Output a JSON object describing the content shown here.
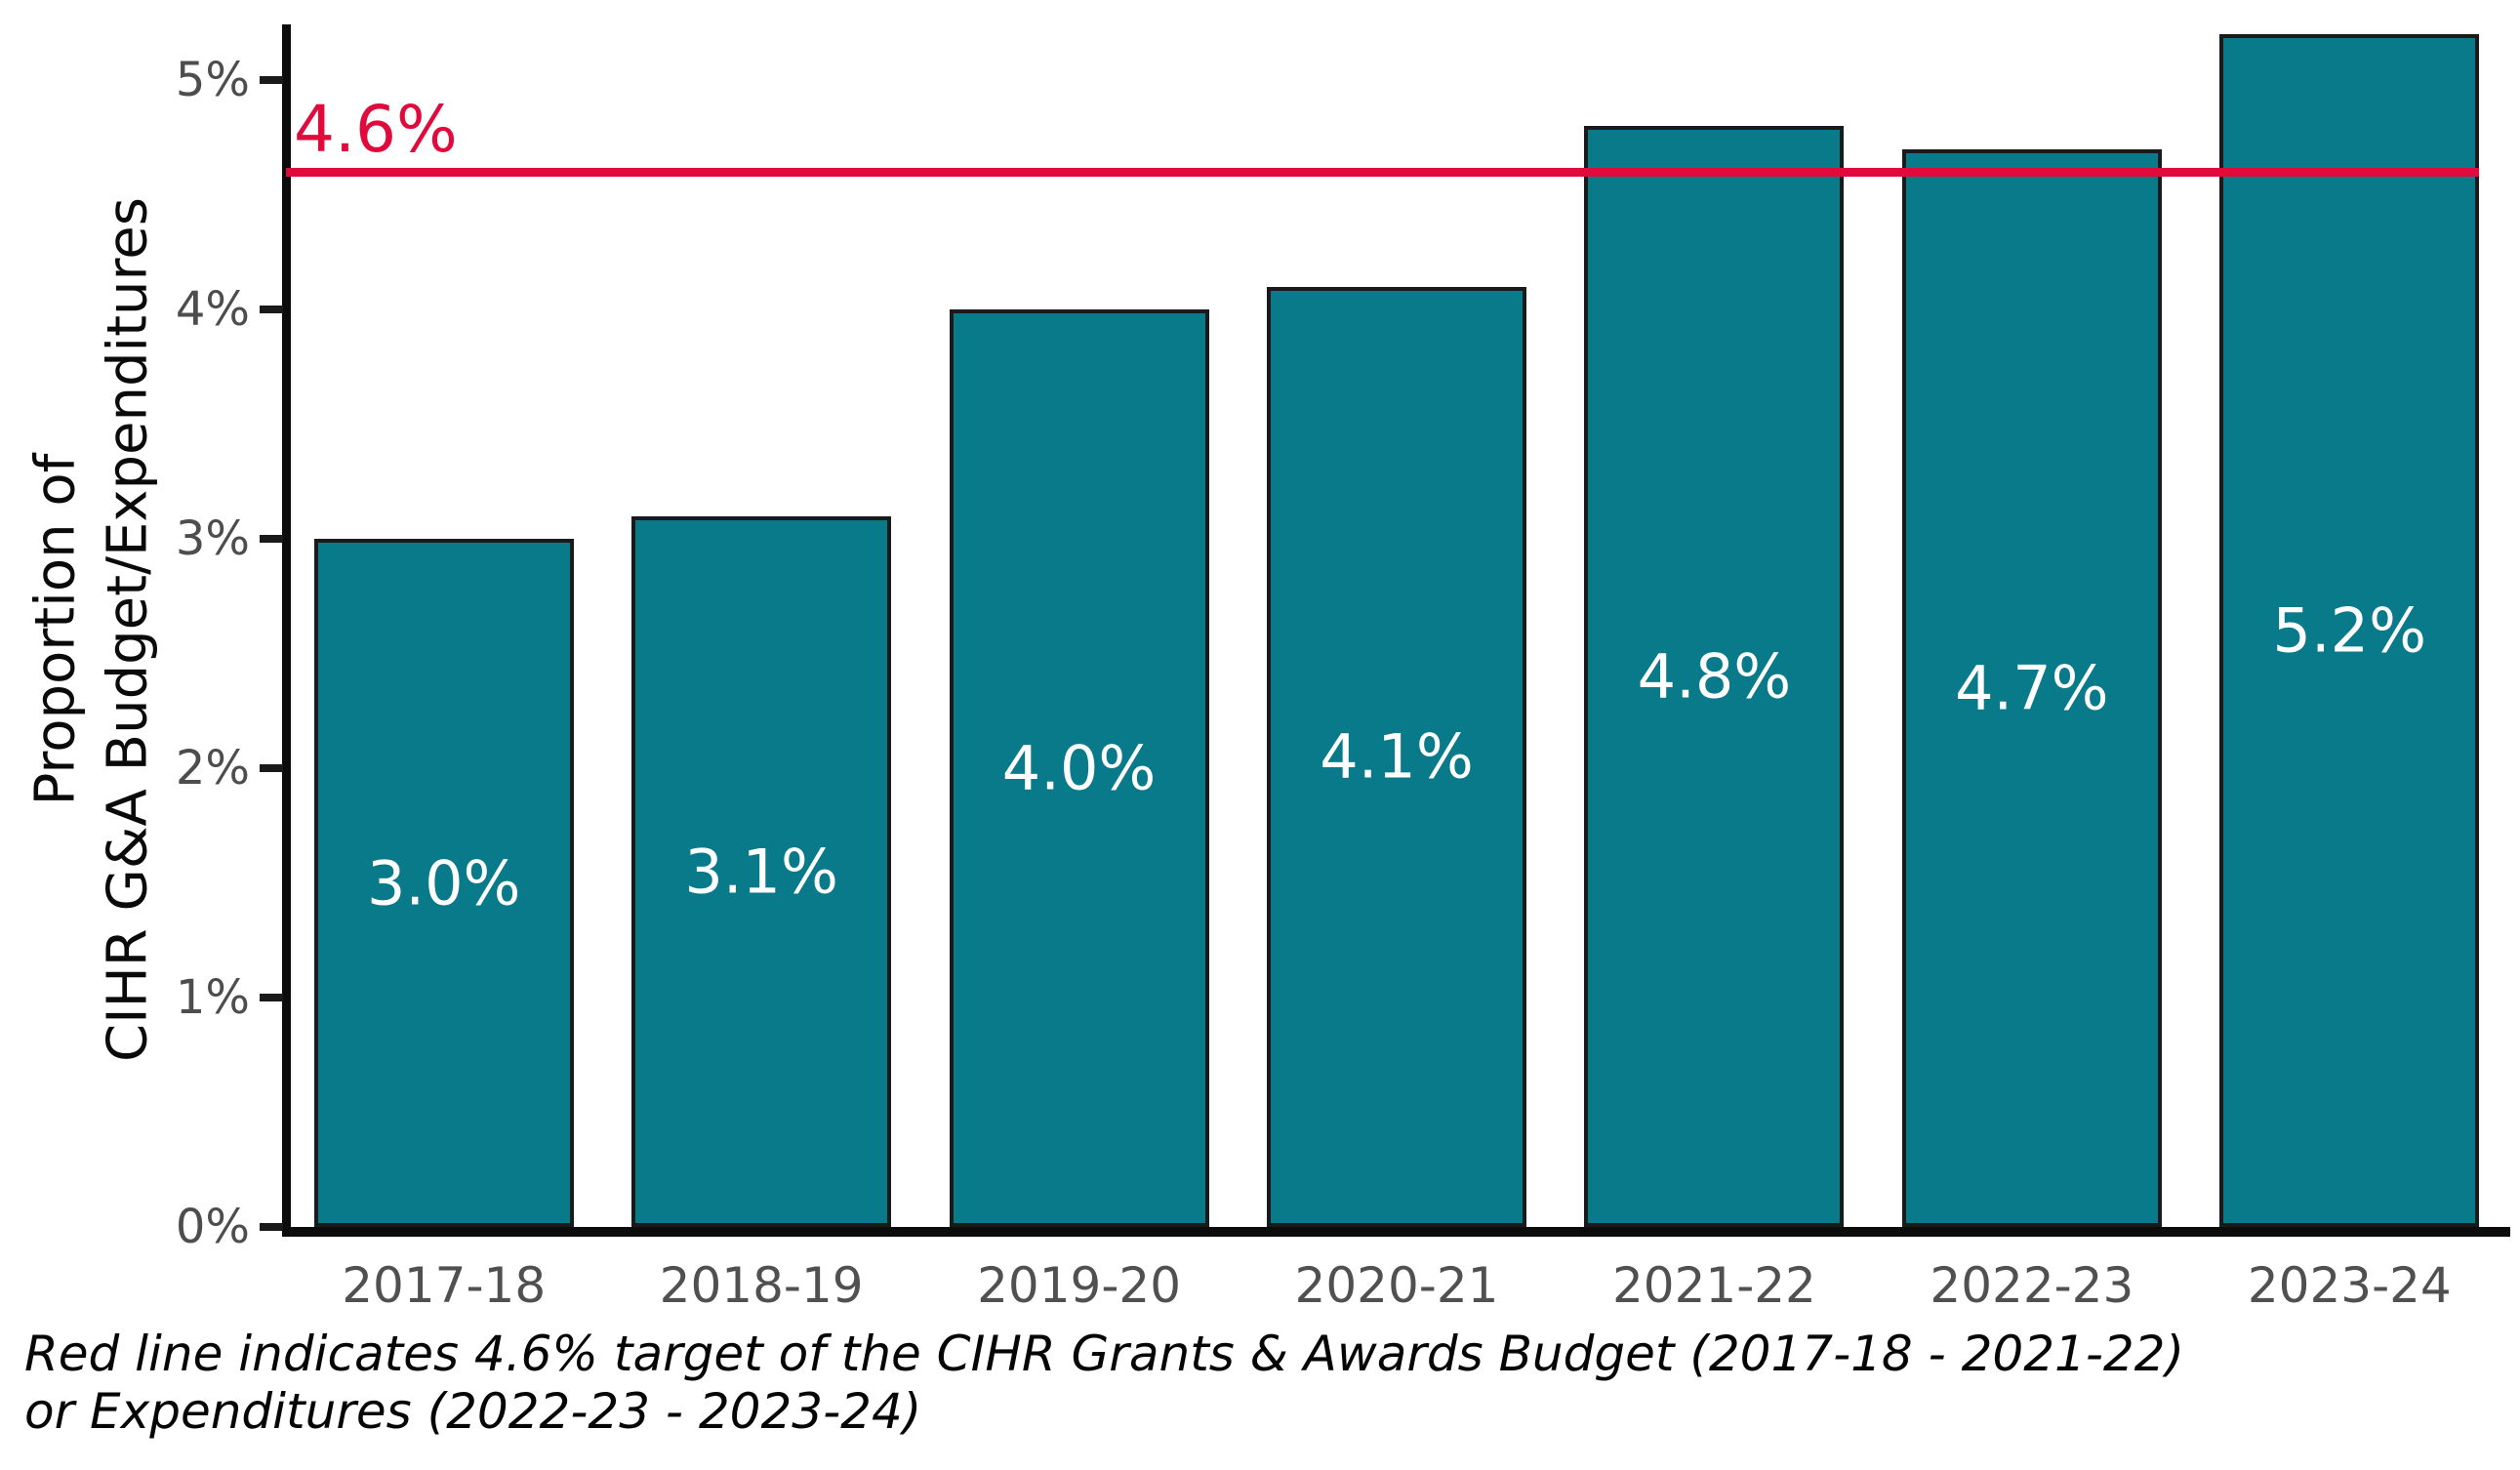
{
  "figure": {
    "background_color": "#ffffff"
  },
  "chart_data": {
    "type": "bar",
    "title": "",
    "categories": [
      "2017-18",
      "2018-19",
      "2019-20",
      "2020-21",
      "2021-22",
      "2022-23",
      "2023-24"
    ],
    "values": [
      3.0,
      3.1,
      4.0,
      4.1,
      4.8,
      4.7,
      5.2
    ],
    "bar_labels": [
      "3.0%",
      "3.1%",
      "4.0%",
      "4.1%",
      "4.8%",
      "4.7%",
      "5.2%"
    ],
    "bar_color": "#087a8a",
    "bar_edge_color": "#1a1a1a",
    "bar_label_color": "#ffffff",
    "xlabel": "",
    "ylabel_line1": "Proportion of",
    "ylabel_line2": "CIHR G&A Budget/Expenditures",
    "y_ticks": {
      "values": [
        0,
        1,
        2,
        3,
        4,
        5
      ],
      "labels": [
        "0%",
        "1%",
        "2%",
        "3%",
        "4%",
        "5%"
      ]
    },
    "ylim": [
      0,
      5.25
    ],
    "grid": false,
    "legend": false,
    "target_line": {
      "value": 4.6,
      "label": "4.6%",
      "color": "#e10a3c"
    },
    "caption_line1": "Red line indicates 4.6% target of the CIHR Grants & Awards Budget (2017-18 - 2021-22)",
    "caption_line2": "or Expenditures (2022-23 - 2023-24)"
  }
}
